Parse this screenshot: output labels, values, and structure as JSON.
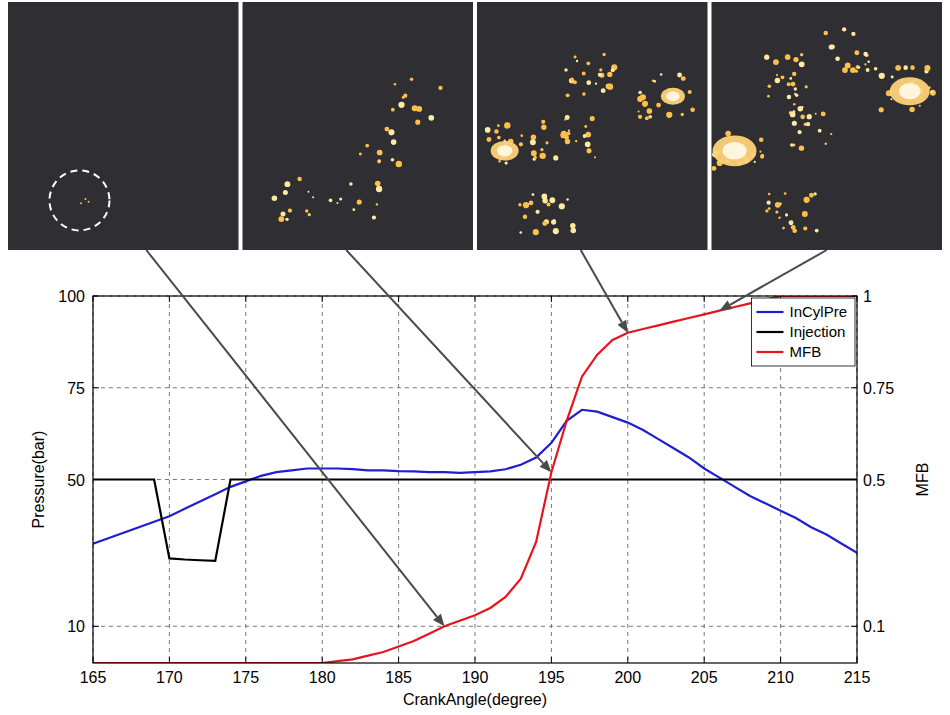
{
  "chart_data": {
    "type": "line",
    "x_label": "CrankAngle(degree)",
    "y_label": "Pressure(bar)",
    "y2_label": "MFB",
    "xlim": [
      165,
      215
    ],
    "xticks": [
      165,
      170,
      175,
      180,
      185,
      190,
      195,
      200,
      205,
      210,
      215
    ],
    "ylim": [
      0,
      100
    ],
    "yticks": [
      10,
      50,
      75,
      100
    ],
    "y2lim": [
      0,
      1
    ],
    "y2ticks": [
      0.1,
      0.5,
      0.75,
      1
    ],
    "grid": true,
    "legend": "upper right",
    "x": [
      165,
      166,
      167,
      168,
      169,
      170,
      171,
      172,
      173,
      174,
      175,
      176,
      177,
      178,
      179,
      180,
      181,
      182,
      183,
      184,
      185,
      186,
      187,
      188,
      189,
      190,
      191,
      192,
      193,
      194,
      195,
      196,
      197,
      198,
      199,
      200,
      201,
      202,
      203,
      204,
      205,
      206,
      207,
      208,
      209,
      210,
      211,
      212,
      213,
      214,
      215
    ],
    "series": [
      {
        "name": "InCylPre",
        "color": "#1f1fd0",
        "line_style": "solid",
        "values": [
          32.5,
          34,
          35.5,
          37,
          38.5,
          40,
          42,
          44,
          46,
          48,
          49.5,
          51,
          52,
          52.5,
          53,
          53,
          53,
          52.8,
          52.5,
          52.5,
          52.3,
          52.2,
          52,
          52,
          51.8,
          52,
          52.2,
          52.8,
          54,
          56,
          60,
          66,
          69,
          68.5,
          67,
          65.5,
          63.5,
          61,
          58.5,
          56,
          53,
          50.5,
          48,
          45.5,
          43.5,
          41.5,
          39.5,
          37,
          35,
          32.5,
          30
        ]
      },
      {
        "name": "Injection",
        "color": "#000000",
        "line_style": "solid",
        "values": [
          50,
          50,
          50,
          50,
          50,
          28.5,
          28.2,
          28,
          27.8,
          50,
          50,
          50,
          50,
          50,
          50,
          50,
          50,
          50,
          50,
          50,
          50,
          50,
          50,
          50,
          50,
          50,
          50,
          50,
          50,
          50,
          50,
          50,
          50,
          50,
          50,
          50,
          50,
          50,
          50,
          50,
          50,
          50,
          50,
          50,
          50,
          50,
          50,
          50,
          50,
          50,
          50
        ]
      },
      {
        "name": "MFB",
        "color": "#e8141c",
        "line_style": "solid",
        "axis": "y2",
        "values": [
          0,
          0,
          0,
          0,
          0,
          0,
          0,
          0,
          0,
          0,
          0,
          0,
          0,
          0,
          0,
          0,
          0.005,
          0.01,
          0.02,
          0.03,
          0.045,
          0.06,
          0.08,
          0.1,
          0.115,
          0.13,
          0.15,
          0.18,
          0.23,
          0.33,
          0.52,
          0.66,
          0.78,
          0.84,
          0.88,
          0.9,
          0.91,
          0.92,
          0.93,
          0.94,
          0.95,
          0.96,
          0.97,
          0.98,
          0.99,
          1,
          1,
          1,
          1,
          1,
          1
        ]
      }
    ],
    "frames": [
      {
        "x": 188
      },
      {
        "x": 195
      },
      {
        "x": 200
      },
      {
        "x": 206
      }
    ]
  }
}
